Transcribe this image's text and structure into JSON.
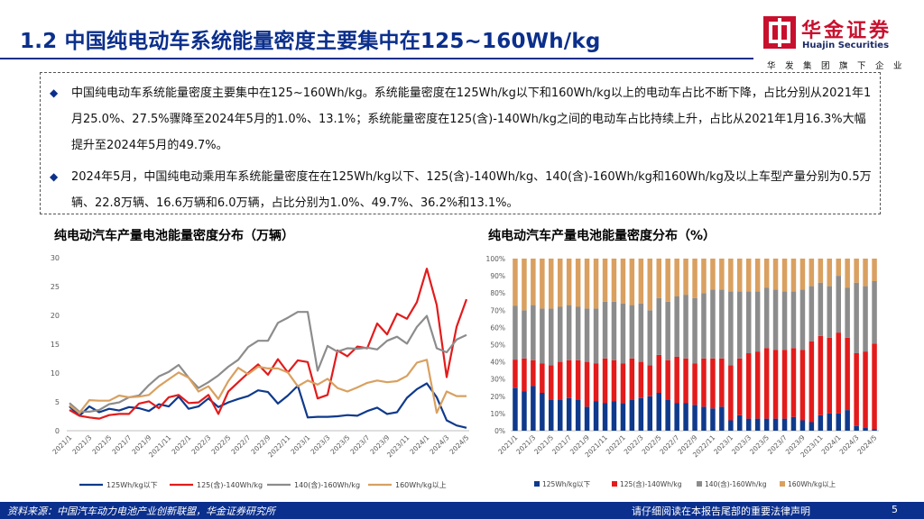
{
  "header": {
    "title": "1.2 中国纯电动车系统能量密度主要集中在125~160Wh/kg",
    "logo_cn": "华金证券",
    "logo_en": "Huajin Securities",
    "slogan": "华发集团旗下企业"
  },
  "summary": {
    "bullets": [
      "中国纯电动车系统能量密度主要集中在125~160Wh/kg。系统能量密度在125Wh/kg以下和160Wh/kg以上的电动车占比不断下降，占比分别从2021年1月25.0%、27.5%骤降至2024年5月的1.0%、13.1%；系统能量密度在125(含)-140Wh/kg之间的电动车占比持续上升，占比从2021年1月16.3%大幅提升至2024年5月的49.7%。",
      "2024年5月，中国纯电动乘用车系统能量密度在在125Wh/kg以下、125(含)-140Wh/kg、140(含)-160Wh/kg和160Wh/kg及以上车型产量分别为0.5万辆、22.8万辆、16.6万辆和6.0万辆，占比分别为1.0%、49.7%、36.2%和13.1%。"
    ]
  },
  "chart_data": [
    {
      "type": "line",
      "title": "纯电动汽车产量电池能量密度分布（万辆）",
      "xlabel": "",
      "ylabel": "",
      "ylim": [
        0,
        30
      ],
      "yticks": [
        "0",
        "5",
        "10",
        "15",
        "20",
        "25",
        "30"
      ],
      "x": [
        "2021/1",
        "2021/2",
        "2021/3",
        "2021/4",
        "2021/5",
        "2021/6",
        "2021/7",
        "2021/8",
        "2021/9",
        "2021/10",
        "2021/11",
        "2021/12",
        "2022/1",
        "2022/2",
        "2022/3",
        "2022/4",
        "2022/5",
        "2022/6",
        "2022/7",
        "2022/8",
        "2022/9",
        "2022/10",
        "2022/11",
        "2022/12",
        "2023/1",
        "2023/2",
        "2023/3",
        "2023/4",
        "2023/5",
        "2023/6",
        "2023/7",
        "2023/8",
        "2023/9",
        "2023/10",
        "2023/11",
        "2023/12",
        "2024/1",
        "2024/2",
        "2024/3",
        "2024/4",
        "2024/5"
      ],
      "xtick_labels": [
        "2021/1",
        "2021/3",
        "2021/5",
        "2021/7",
        "2021/9",
        "2021/11",
        "2022/1",
        "2022/3",
        "2022/5",
        "2022/7",
        "2022/9",
        "2022/11",
        "2023/1",
        "2023/3",
        "2023/5",
        "2023/7",
        "2023/9",
        "2023/11",
        "2024/1",
        "2024/3",
        "2024/5"
      ],
      "series": [
        {
          "name": "125Wh/kg以下",
          "color": "#0f3a8c",
          "values": [
            4.2,
            2.6,
            4.2,
            3.2,
            3.8,
            3.5,
            4.1,
            3.9,
            3.4,
            4.6,
            4.2,
            5.9,
            3.8,
            4.2,
            5.6,
            4.1,
            4.9,
            5.5,
            6.0,
            7.0,
            6.7,
            4.7,
            6.1,
            7.8,
            2.3,
            2.4,
            2.4,
            2.5,
            2.7,
            2.6,
            3.4,
            4.0,
            2.9,
            3.2,
            5.7,
            7.2,
            8.2,
            5.8,
            1.8,
            0.9,
            0.5
          ]
        },
        {
          "name": "125(含)-140Wh/kg",
          "color": "#e31b1b",
          "values": [
            3.6,
            2.6,
            2.3,
            2.1,
            2.7,
            2.9,
            2.9,
            4.7,
            5.1,
            3.9,
            5.8,
            6.2,
            4.8,
            4.9,
            6.2,
            2.9,
            6.8,
            8.4,
            10.0,
            11.5,
            9.7,
            12.4,
            10.1,
            12.2,
            11.9,
            5.6,
            6.2,
            13.9,
            12.9,
            14.6,
            14.3,
            18.6,
            16.7,
            20.3,
            19.4,
            22.3,
            28.1,
            21.8,
            9.3,
            18.0,
            22.8
          ]
        },
        {
          "name": "140(含)-160Wh/kg",
          "color": "#8c8c8c",
          "values": [
            4.8,
            3.3,
            3.3,
            3.6,
            4.6,
            4.9,
            5.8,
            6.1,
            7.9,
            9.4,
            10.2,
            11.4,
            9.2,
            7.4,
            8.4,
            9.6,
            11.1,
            12.3,
            14.5,
            15.6,
            15.6,
            18.7,
            19.6,
            20.6,
            20.6,
            10.4,
            14.7,
            13.7,
            14.3,
            14.2,
            14.4,
            14.1,
            15.6,
            16.3,
            15.1,
            18.0,
            19.9,
            14.3,
            13.6,
            15.8,
            16.6
          ]
        },
        {
          "name": "160Wh/kg以上",
          "color": "#d9a060",
          "values": [
            4.4,
            3.1,
            5.3,
            5.2,
            5.2,
            6.1,
            5.8,
            5.9,
            6.2,
            7.7,
            8.9,
            10.1,
            9.2,
            6.8,
            7.7,
            5.5,
            8.6,
            10.9,
            9.8,
            11.1,
            10.8,
            10.8,
            10.1,
            7.7,
            8.7,
            8.0,
            9.0,
            7.4,
            6.8,
            7.5,
            8.3,
            8.7,
            8.4,
            8.6,
            9.5,
            11.8,
            12.3,
            3.1,
            6.8,
            6.0,
            6.0
          ]
        }
      ],
      "legend": "bottom"
    },
    {
      "type": "bar",
      "stacked": true,
      "title": "纯电动汽车产量电池能量密度分布（%）",
      "xlabel": "",
      "ylabel": "",
      "ylim": [
        0,
        100
      ],
      "yticks": [
        "0%",
        "10%",
        "20%",
        "30%",
        "40%",
        "50%",
        "60%",
        "70%",
        "80%",
        "90%",
        "100%"
      ],
      "categories": [
        "2021/1",
        "2021/2",
        "2021/3",
        "2021/4",
        "2021/5",
        "2021/6",
        "2021/7",
        "2021/8",
        "2021/9",
        "2021/10",
        "2021/11",
        "2021/12",
        "2022/1",
        "2022/2",
        "2022/3",
        "2022/4",
        "2022/5",
        "2022/6",
        "2022/7",
        "2022/8",
        "2022/9",
        "2022/10",
        "2022/11",
        "2022/12",
        "2023/1",
        "2023/2",
        "2023/3",
        "2023/4",
        "2023/5",
        "2023/6",
        "2023/7",
        "2023/8",
        "2023/9",
        "2023/10",
        "2023/11",
        "2023/12",
        "2024/1",
        "2024/2",
        "2024/3",
        "2024/4",
        "2024/5"
      ],
      "xtick_labels": [
        "2021/1",
        "2021/3",
        "2021/5",
        "2021/7",
        "2021/9",
        "2021/11",
        "2022/1",
        "2022/3",
        "2022/5",
        "2022/7",
        "2022/9",
        "2022/11",
        "2023/1",
        "2023/3",
        "2023/5",
        "2023/7",
        "2023/9",
        "2023/11",
        "2024/1",
        "2024/3",
        "2024/5"
      ],
      "series": [
        {
          "name": "125Wh/kg以下",
          "color": "#0f3a8c",
          "values": [
            25.0,
            23.0,
            26.0,
            22.0,
            18.0,
            18.0,
            19.0,
            18.0,
            14.0,
            17.0,
            16.0,
            17.0,
            16.0,
            18.0,
            19.0,
            20.0,
            22.0,
            18.0,
            16.0,
            16.0,
            15.0,
            14.0,
            13.0,
            14.0,
            6.0,
            9.0,
            7.0,
            7.0,
            7.0,
            7.0,
            7.0,
            8.0,
            6.0,
            5.0,
            9.0,
            10.0,
            10.0,
            12.0,
            3.0,
            2.0,
            1.0
          ]
        },
        {
          "name": "125(含)-140Wh/kg",
          "color": "#e31b1b",
          "values": [
            16.3,
            19.0,
            15.0,
            17.0,
            20.0,
            22.0,
            22.0,
            23.0,
            26.0,
            22.0,
            26.0,
            24.0,
            23.0,
            24.0,
            21.0,
            18.0,
            22.0,
            23.0,
            27.0,
            26.0,
            24.0,
            28.0,
            29.0,
            28.0,
            32.0,
            33.0,
            38.0,
            39.0,
            41.0,
            40.0,
            40.0,
            40.0,
            41.0,
            47.0,
            46.0,
            44.0,
            47.0,
            42.0,
            42.0,
            44.0,
            49.7
          ]
        },
        {
          "name": "140(含)-160Wh/kg",
          "color": "#8c8c8c",
          "values": [
            31.2,
            28.0,
            32.0,
            32.0,
            33.0,
            32.0,
            32.0,
            31.0,
            31.0,
            32.0,
            33.0,
            34.0,
            35.0,
            31.0,
            34.0,
            32.0,
            33.0,
            34.0,
            35.0,
            37.0,
            38.0,
            38.0,
            40.0,
            40.0,
            43.0,
            39.0,
            36.0,
            35.0,
            35.0,
            35.0,
            34.0,
            33.0,
            35.0,
            32.0,
            31.0,
            30.0,
            33.0,
            29.0,
            41.0,
            38.0,
            36.2
          ]
        },
        {
          "name": "160Wh/kg以上",
          "color": "#d9a060",
          "values": [
            27.5,
            30.0,
            27.0,
            29.0,
            29.0,
            28.0,
            27.0,
            28.0,
            29.0,
            29.0,
            25.0,
            25.0,
            26.0,
            27.0,
            26.0,
            30.0,
            23.0,
            25.0,
            22.0,
            21.0,
            23.0,
            20.0,
            18.0,
            18.0,
            19.0,
            19.0,
            19.0,
            19.0,
            17.0,
            18.0,
            19.0,
            19.0,
            18.0,
            16.0,
            14.0,
            16.0,
            10.0,
            17.0,
            14.0,
            16.0,
            13.1
          ]
        }
      ],
      "legend": "bottom"
    }
  ],
  "footer": {
    "source": "资料来源：中国汽车动力电池产业创新联盟，华金证券研究所",
    "disclaimer": "请仔细阅读在本报告尾部的重要法律声明",
    "page": "5"
  },
  "colors": {
    "brand_blue": "#0b2f8c",
    "brand_red": "#c8102e"
  }
}
